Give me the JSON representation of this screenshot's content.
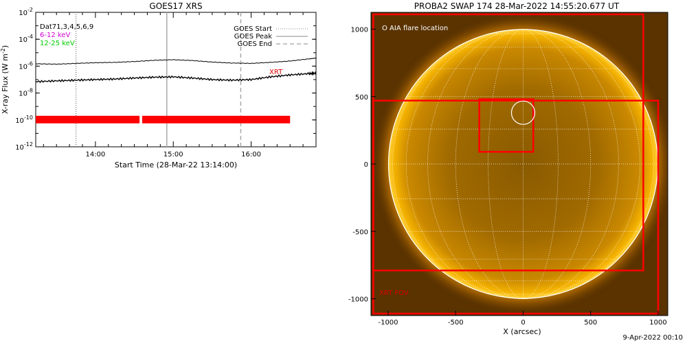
{
  "goes_panel": {
    "title": "GOES17 XRS",
    "ylabel": "X-ray Flux (W m",
    "ylabel_sup": "-2",
    "ylabel_end": ")",
    "xlabel": "Start Time (28-Mar-22 13:14:00)",
    "sat_labels": [
      {
        "text": "Dat71,3,4,5,6,9",
        "color": "#000000"
      },
      {
        "text": "6-12 keV",
        "color": "#d000d0"
      },
      {
        "text": "12-25 keV",
        "color": "#00cc00"
      }
    ],
    "legend": [
      {
        "text": "GOES Start",
        "style": "dotted"
      },
      {
        "text": "GOES Peak",
        "style": "solid"
      },
      {
        "text": "GOES End",
        "style": "dashed"
      }
    ],
    "xrt_label": "XRT"
  },
  "swap_panel": {
    "title": "PROBA2 SWAP 174 28-Mar-2022 14:55:20.677 UT",
    "xlabel": "X (arcsec)",
    "aia_label": "O AIA flare location",
    "fov_label": "XRT FOV"
  },
  "timestamp": "9-Apr-2022 00:10",
  "chart_data": [
    {
      "type": "line",
      "title": "GOES17 XRS",
      "xlabel": "Start Time (28-Mar-22 13:14:00)",
      "ylabel": "X-ray Flux (W m^-2)",
      "y_scale": "log",
      "xlim": [
        "13:14",
        "16:50"
      ],
      "ylim": [
        1e-12,
        0.01
      ],
      "x_ticks": [
        "14:00",
        "15:00",
        "16:00"
      ],
      "y_ticks": [
        "10^-12",
        "10^-10",
        "10^-8",
        "10^-6",
        "10^-4",
        "10^-2"
      ],
      "series": [
        {
          "x": [
            "13:14",
            "13:30",
            "13:45",
            "14:00",
            "14:15",
            "14:30",
            "14:45",
            "15:00",
            "15:15",
            "15:30",
            "15:45",
            "16:00",
            "16:15",
            "16:30",
            "16:45",
            "16:50"
          ],
          "y": [
            1.5e-06,
            1.4e-06,
            1.6e-06,
            1.8e-06,
            1.9e-06,
            2.2e-06,
            2.7e-06,
            3e-06,
            2.6e-06,
            2e-06,
            1.7e-06,
            1.6e-06,
            1.9e-06,
            2.4e-06,
            3.5e-06,
            4e-06
          ]
        },
        {
          "x": [
            "13:14",
            "13:30",
            "13:45",
            "14:00",
            "14:15",
            "14:30",
            "14:45",
            "15:00",
            "15:15",
            "15:30",
            "15:45",
            "16:00",
            "16:15",
            "16:30",
            "16:45",
            "16:50"
          ],
          "y": [
            7e-08,
            8e-08,
            9e-08,
            1e-07,
            1.1e-07,
            1.3e-07,
            1.5e-07,
            1.6e-07,
            1.3e-07,
            1e-07,
            9e-08,
            1e-07,
            1.6e-07,
            2.2e-07,
            2.8e-07,
            3e-07
          ]
        }
      ],
      "markers": [
        {
          "label": "GOES Start",
          "x": "13:45",
          "style": "dotted"
        },
        {
          "label": "GOES Peak",
          "x": "14:55",
          "style": "solid"
        },
        {
          "label": "GOES End",
          "x": "15:52",
          "style": "dashed"
        }
      ],
      "xrt_coverage": [
        [
          "13:14",
          "14:34"
        ],
        [
          "14:36",
          "16:30"
        ]
      ]
    },
    {
      "type": "image",
      "title": "PROBA2 SWAP 174 28-Mar-2022 14:55:20.677 UT",
      "xlabel": "X (arcsec)",
      "xlim": [
        -1100,
        1100
      ],
      "ylim": [
        -1100,
        1100
      ],
      "x_ticks": [
        -1000,
        -500,
        0,
        500,
        1000
      ],
      "y_ticks": [
        -1000,
        -500,
        0,
        500,
        1000
      ],
      "solar_radius": 1000,
      "aia_flare_location": [
        0,
        380
      ],
      "xrt_fov_boxes": [
        {
          "x0": -1110,
          "x1": 1000,
          "y0": -1110,
          "y1": 470
        },
        {
          "x0": -1110,
          "x1": 890,
          "y0": -790,
          "y1": 1110
        },
        {
          "x0": -325,
          "x1": 75,
          "y0": 90,
          "y1": 480
        }
      ]
    }
  ]
}
